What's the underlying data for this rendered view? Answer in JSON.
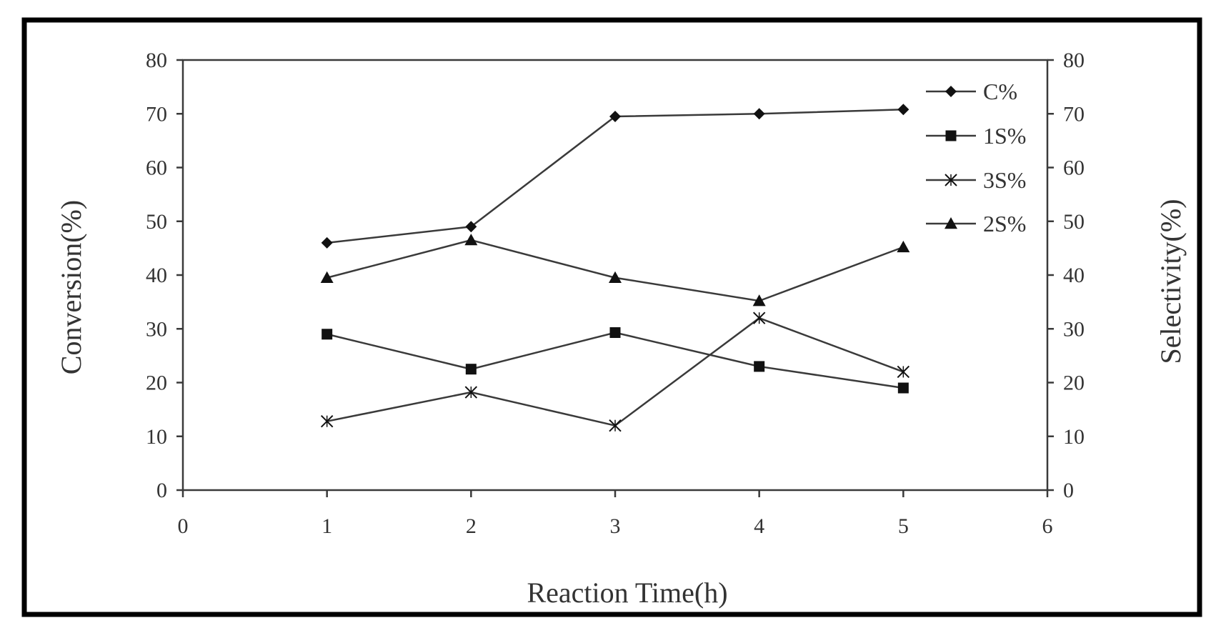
{
  "chart_data": {
    "type": "line",
    "xlabel": "Reaction Time(h)",
    "ylabel_left": "Conversion(%)",
    "ylabel_right": "Selectivity(%)",
    "xlim": [
      0,
      6
    ],
    "ylim_left": [
      0,
      80
    ],
    "ylim_right": [
      0,
      80
    ],
    "x_ticks": [
      "0",
      "1",
      "2",
      "3",
      "4",
      "5",
      "6"
    ],
    "y_ticks_left": [
      "0",
      "10",
      "20",
      "30",
      "40",
      "50",
      "60",
      "70",
      "80"
    ],
    "y_ticks_right": [
      "0",
      "10",
      "20",
      "30",
      "40",
      "50",
      "60",
      "70",
      "80"
    ],
    "grid": false,
    "legend_position": "top-right",
    "x": [
      1,
      2,
      3,
      4,
      5
    ],
    "series": [
      {
        "name": "C%",
        "marker": "diamond",
        "values": [
          46,
          49,
          69.5,
          70,
          70.8
        ]
      },
      {
        "name": "1S%",
        "marker": "square",
        "values": [
          29,
          22.5,
          29.3,
          23,
          19
        ]
      },
      {
        "name": "3S%",
        "marker": "star",
        "values": [
          12.8,
          18.2,
          12,
          32,
          22
        ]
      },
      {
        "name": "2S%",
        "marker": "triangle",
        "values": [
          39.5,
          46.5,
          39.5,
          35.2,
          45.2
        ]
      }
    ],
    "colors": {
      "line": "#3a3a3a",
      "marker": "#111111",
      "frame": "#000000"
    }
  }
}
